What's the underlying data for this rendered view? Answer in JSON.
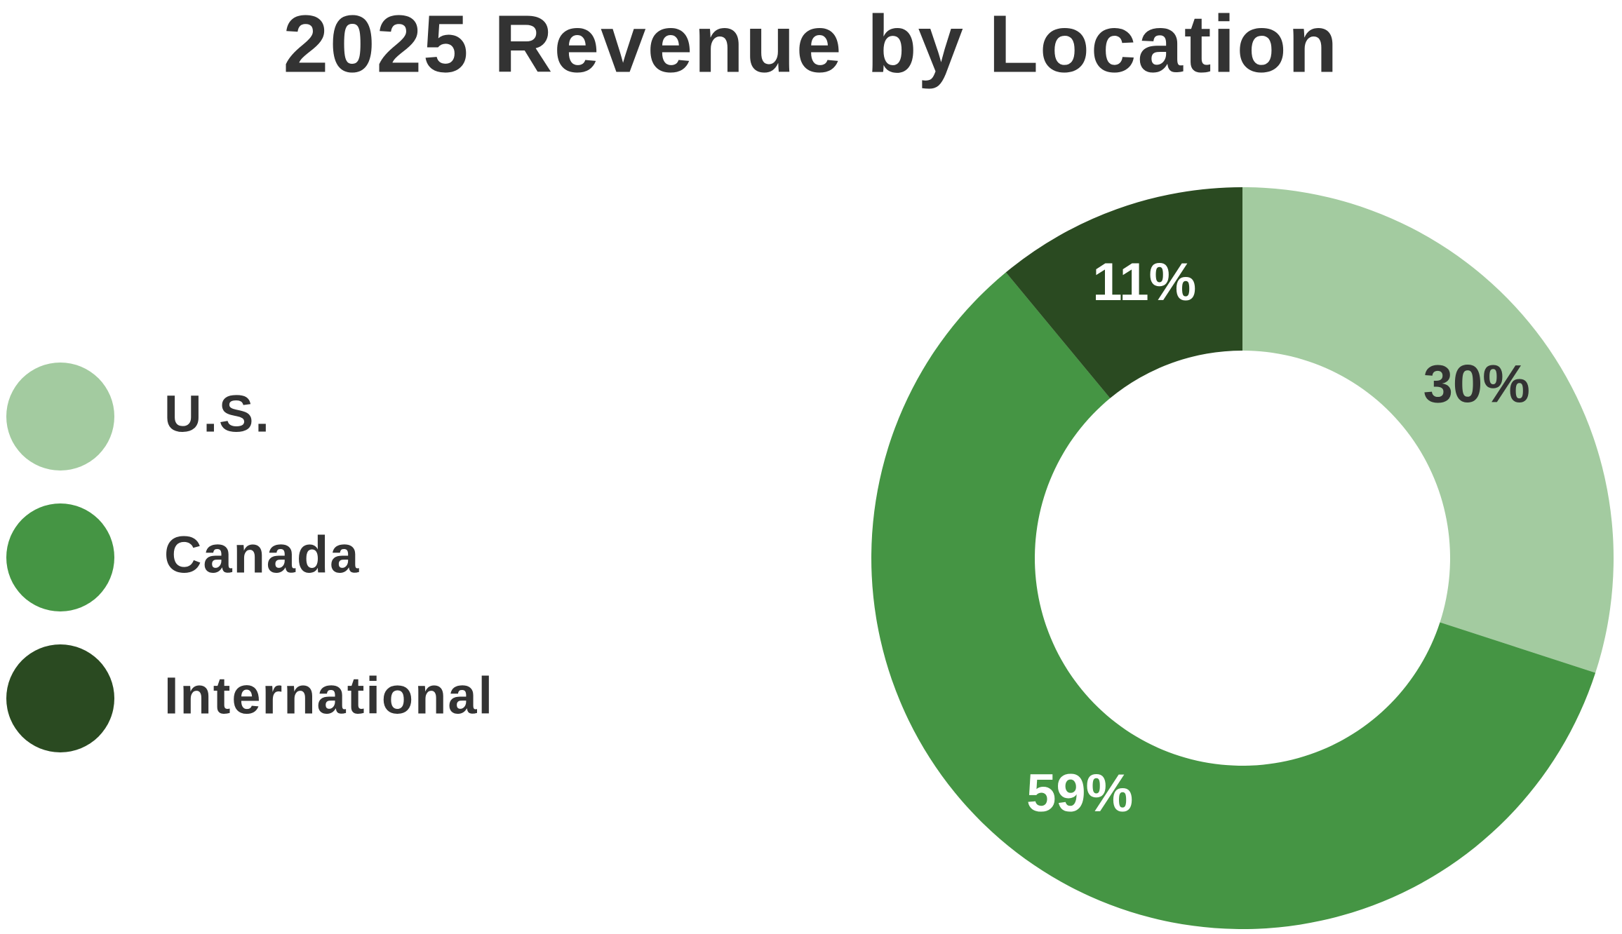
{
  "chart_data": {
    "type": "donut",
    "title": "2025 Revenue by Location",
    "categories": [
      "U.S.",
      "Canada",
      "International"
    ],
    "values": [
      30,
      59,
      11
    ],
    "value_labels": [
      "30%",
      "59%",
      "11%"
    ],
    "colors": [
      "#a3cba0",
      "#459544",
      "#2a4a21"
    ],
    "legend": "left"
  }
}
